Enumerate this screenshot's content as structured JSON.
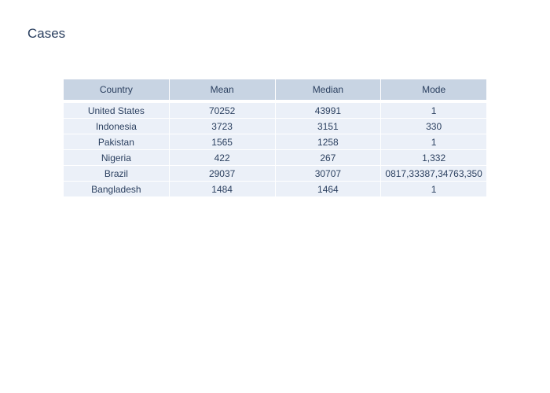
{
  "chart_data": {
    "type": "table",
    "title": "Cases",
    "columns": [
      "Country",
      "Mean",
      "Median",
      "Mode"
    ],
    "rows": [
      [
        "United States",
        "70252",
        "43991",
        "1"
      ],
      [
        "Indonesia",
        "3723",
        "3151",
        "330"
      ],
      [
        "Pakistan",
        "1565",
        "1258",
        "1"
      ],
      [
        "Nigeria",
        "422",
        "267",
        "1,332"
      ],
      [
        "Brazil",
        "29037",
        "30707",
        "0817,33387,34763,350"
      ],
      [
        "Bangladesh",
        "1484",
        "1464",
        "1"
      ]
    ],
    "colors": {
      "header_fill": "#c8d4e3",
      "cell_fill": "#ebf0f8",
      "text": "#2a3f5f",
      "border": "#ffffff"
    }
  }
}
